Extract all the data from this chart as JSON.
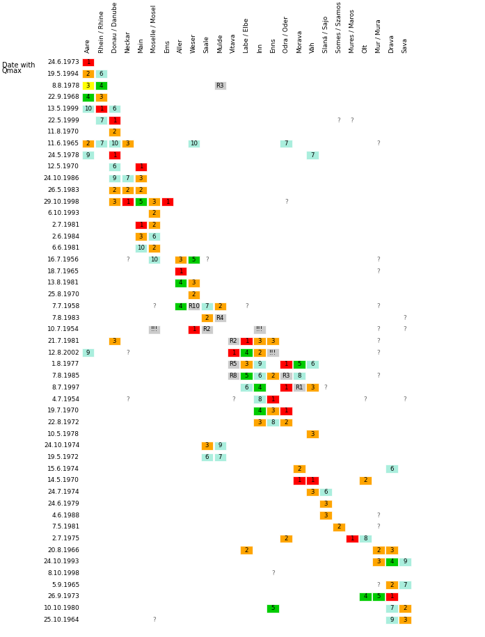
{
  "columns": [
    "Aare",
    "Rhein / Rhine",
    "Donau / Danube",
    "Neckar",
    "Main",
    "Moselle / Mosel",
    "Ems",
    "Aller",
    "Weser",
    "Saale",
    "Mulde",
    "Vitava",
    "Labe / Elbe",
    "Inn",
    "Enns",
    "Odra / Oder",
    "Morava",
    "Váh",
    "Slaná / Sajo",
    "Somes / Szamos",
    "Mures / Maros",
    "Olt",
    "Mur / Mura",
    "Drava",
    "Sava"
  ],
  "rows": [
    {
      "date": "24.6.1973",
      "cells": [
        {
          "col": 0,
          "val": "1",
          "color": "red"
        }
      ]
    },
    {
      "date": "19.5.1994",
      "cells": [
        {
          "col": 0,
          "val": "2",
          "color": "orange"
        },
        {
          "col": 1,
          "val": "6",
          "color": "lightcyan"
        }
      ]
    },
    {
      "date": "8.8.1978",
      "cells": [
        {
          "col": 0,
          "val": "3",
          "color": "yellow"
        },
        {
          "col": 1,
          "val": "4",
          "color": "green"
        },
        {
          "col": 10,
          "val": "R3",
          "color": "lightgray"
        }
      ]
    },
    {
      "date": "22.9.1968",
      "cells": [
        {
          "col": 0,
          "val": "4",
          "color": "green"
        },
        {
          "col": 1,
          "val": "3",
          "color": "orange"
        }
      ]
    },
    {
      "date": "13.5.1999",
      "cells": [
        {
          "col": 0,
          "val": "10",
          "color": "lightcyan"
        },
        {
          "col": 1,
          "val": "1",
          "color": "red"
        },
        {
          "col": 2,
          "val": "6",
          "color": "lightcyan"
        }
      ]
    },
    {
      "date": "22.5.1999",
      "cells": [
        {
          "col": 1,
          "val": "7",
          "color": "lightcyan"
        },
        {
          "col": 2,
          "val": "1",
          "color": "red"
        },
        {
          "col": 19,
          "val": "?",
          "color": "none"
        },
        {
          "col": 20,
          "val": "?",
          "color": "none"
        }
      ]
    },
    {
      "date": "11.8.1970",
      "cells": [
        {
          "col": 2,
          "val": "2",
          "color": "orange"
        }
      ]
    },
    {
      "date": "11.6.1965",
      "cells": [
        {
          "col": 0,
          "val": "2",
          "color": "orange"
        },
        {
          "col": 1,
          "val": "7",
          "color": "lightcyan"
        },
        {
          "col": 2,
          "val": "10",
          "color": "lightcyan"
        },
        {
          "col": 3,
          "val": "3",
          "color": "orange"
        },
        {
          "col": 8,
          "val": "10",
          "color": "lightcyan"
        },
        {
          "col": 15,
          "val": "7",
          "color": "lightcyan"
        },
        {
          "col": 22,
          "val": "?",
          "color": "none"
        }
      ]
    },
    {
      "date": "24.5.1978",
      "cells": [
        {
          "col": 0,
          "val": "9",
          "color": "lightcyan"
        },
        {
          "col": 2,
          "val": "1",
          "color": "red"
        },
        {
          "col": 17,
          "val": "7",
          "color": "lightcyan"
        }
      ]
    },
    {
      "date": "12.5.1970",
      "cells": [
        {
          "col": 2,
          "val": "6",
          "color": "lightcyan"
        },
        {
          "col": 4,
          "val": "1",
          "color": "red"
        }
      ]
    },
    {
      "date": "24.10.1986",
      "cells": [
        {
          "col": 2,
          "val": "9",
          "color": "lightcyan"
        },
        {
          "col": 3,
          "val": "7",
          "color": "lightcyan"
        },
        {
          "col": 4,
          "val": "3",
          "color": "orange"
        }
      ]
    },
    {
      "date": "26.5.1983",
      "cells": [
        {
          "col": 2,
          "val": "2",
          "color": "orange"
        },
        {
          "col": 3,
          "val": "2",
          "color": "orange"
        },
        {
          "col": 4,
          "val": "2",
          "color": "orange"
        }
      ]
    },
    {
      "date": "29.10.1998",
      "cells": [
        {
          "col": 2,
          "val": "3",
          "color": "orange"
        },
        {
          "col": 3,
          "val": "1",
          "color": "red"
        },
        {
          "col": 4,
          "val": "5",
          "color": "green"
        },
        {
          "col": 5,
          "val": "3",
          "color": "orange"
        },
        {
          "col": 6,
          "val": "1",
          "color": "red"
        },
        {
          "col": 15,
          "val": "?",
          "color": "none"
        }
      ]
    },
    {
      "date": "6.10.1993",
      "cells": [
        {
          "col": 5,
          "val": "2",
          "color": "orange"
        }
      ]
    },
    {
      "date": "2.7.1981",
      "cells": [
        {
          "col": 4,
          "val": "1",
          "color": "red"
        },
        {
          "col": 5,
          "val": "2",
          "color": "orange"
        }
      ]
    },
    {
      "date": "2.6.1984",
      "cells": [
        {
          "col": 4,
          "val": "3",
          "color": "orange"
        },
        {
          "col": 5,
          "val": "6",
          "color": "lightcyan"
        }
      ]
    },
    {
      "date": "6.6.1981",
      "cells": [
        {
          "col": 4,
          "val": "10",
          "color": "lightcyan"
        },
        {
          "col": 5,
          "val": "2",
          "color": "orange"
        }
      ]
    },
    {
      "date": "16.7.1956",
      "cells": [
        {
          "col": 3,
          "val": "?",
          "color": "none"
        },
        {
          "col": 5,
          "val": "10",
          "color": "lightcyan"
        },
        {
          "col": 7,
          "val": "3",
          "color": "orange"
        },
        {
          "col": 8,
          "val": "5",
          "color": "green"
        },
        {
          "col": 9,
          "val": "?",
          "color": "none"
        },
        {
          "col": 22,
          "val": "?",
          "color": "none"
        }
      ]
    },
    {
      "date": "18.7.1965",
      "cells": [
        {
          "col": 7,
          "val": "1",
          "color": "red"
        },
        {
          "col": 22,
          "val": "?",
          "color": "none"
        }
      ]
    },
    {
      "date": "13.8.1981",
      "cells": [
        {
          "col": 7,
          "val": "4",
          "color": "green"
        },
        {
          "col": 8,
          "val": "3",
          "color": "orange"
        }
      ]
    },
    {
      "date": "25.8.1970",
      "cells": [
        {
          "col": 8,
          "val": "2",
          "color": "orange"
        }
      ]
    },
    {
      "date": "7.7.1958",
      "cells": [
        {
          "col": 5,
          "val": "?",
          "color": "none"
        },
        {
          "col": 7,
          "val": "4",
          "color": "green"
        },
        {
          "col": 8,
          "val": "R10",
          "color": "lightgray"
        },
        {
          "col": 9,
          "val": "7",
          "color": "lightcyan"
        },
        {
          "col": 10,
          "val": "2",
          "color": "orange"
        },
        {
          "col": 12,
          "val": "?",
          "color": "none"
        },
        {
          "col": 22,
          "val": "?",
          "color": "none"
        }
      ]
    },
    {
      "date": "7.8.1983",
      "cells": [
        {
          "col": 9,
          "val": "2",
          "color": "orange"
        },
        {
          "col": 10,
          "val": "R4",
          "color": "lightgray"
        },
        {
          "col": 24,
          "val": "?",
          "color": "none"
        }
      ]
    },
    {
      "date": "10.7.1954",
      "cells": [
        {
          "col": 5,
          "val": "!!!",
          "color": "lightgray"
        },
        {
          "col": 8,
          "val": "1",
          "color": "red"
        },
        {
          "col": 9,
          "val": "R2",
          "color": "lightgray"
        },
        {
          "col": 13,
          "val": "!!!",
          "color": "lightgray"
        },
        {
          "col": 22,
          "val": "?",
          "color": "none"
        },
        {
          "col": 24,
          "val": "?",
          "color": "none"
        }
      ]
    },
    {
      "date": "21.7.1981",
      "cells": [
        {
          "col": 2,
          "val": "3",
          "color": "orange"
        },
        {
          "col": 11,
          "val": "R2",
          "color": "lightgray"
        },
        {
          "col": 12,
          "val": "1",
          "color": "red"
        },
        {
          "col": 13,
          "val": "3",
          "color": "orange"
        },
        {
          "col": 14,
          "val": "3",
          "color": "orange"
        },
        {
          "col": 22,
          "val": "?",
          "color": "none"
        }
      ]
    },
    {
      "date": "12.8.2002",
      "cells": [
        {
          "col": 0,
          "val": "9",
          "color": "lightcyan"
        },
        {
          "col": 3,
          "val": "?",
          "color": "none"
        },
        {
          "col": 11,
          "val": "1",
          "color": "red"
        },
        {
          "col": 12,
          "val": "4",
          "color": "green"
        },
        {
          "col": 13,
          "val": "2",
          "color": "orange"
        },
        {
          "col": 14,
          "val": "!!!",
          "color": "lightgray"
        },
        {
          "col": 22,
          "val": "?",
          "color": "none"
        }
      ]
    },
    {
      "date": "1.8.1977",
      "cells": [
        {
          "col": 11,
          "val": "R5",
          "color": "lightgray"
        },
        {
          "col": 12,
          "val": "3",
          "color": "orange"
        },
        {
          "col": 13,
          "val": "9",
          "color": "lightcyan"
        },
        {
          "col": 15,
          "val": "1",
          "color": "red"
        },
        {
          "col": 16,
          "val": "5",
          "color": "green"
        },
        {
          "col": 17,
          "val": "6",
          "color": "lightcyan"
        }
      ]
    },
    {
      "date": "7.8.1985",
      "cells": [
        {
          "col": 11,
          "val": "R8",
          "color": "lightgray"
        },
        {
          "col": 12,
          "val": "5",
          "color": "green"
        },
        {
          "col": 13,
          "val": "6",
          "color": "lightcyan"
        },
        {
          "col": 14,
          "val": "2",
          "color": "orange"
        },
        {
          "col": 15,
          "val": "R3",
          "color": "lightgray"
        },
        {
          "col": 16,
          "val": "8",
          "color": "lightcyan"
        },
        {
          "col": 22,
          "val": "?",
          "color": "none"
        }
      ]
    },
    {
      "date": "8.7.1997",
      "cells": [
        {
          "col": 12,
          "val": "6",
          "color": "lightcyan"
        },
        {
          "col": 13,
          "val": "4",
          "color": "green"
        },
        {
          "col": 15,
          "val": "1",
          "color": "red"
        },
        {
          "col": 16,
          "val": "R1",
          "color": "lightgray"
        },
        {
          "col": 17,
          "val": "3",
          "color": "orange"
        },
        {
          "col": 18,
          "val": "?",
          "color": "none"
        }
      ]
    },
    {
      "date": "4.7.1954",
      "cells": [
        {
          "col": 3,
          "val": "?",
          "color": "none"
        },
        {
          "col": 11,
          "val": "?",
          "color": "none"
        },
        {
          "col": 13,
          "val": "8",
          "color": "lightcyan"
        },
        {
          "col": 14,
          "val": "1",
          "color": "red"
        },
        {
          "col": 21,
          "val": "?",
          "color": "none"
        },
        {
          "col": 24,
          "val": "?",
          "color": "none"
        }
      ]
    },
    {
      "date": "19.7.1970",
      "cells": [
        {
          "col": 13,
          "val": "4",
          "color": "green"
        },
        {
          "col": 14,
          "val": "3",
          "color": "orange"
        },
        {
          "col": 15,
          "val": "1",
          "color": "red"
        }
      ]
    },
    {
      "date": "22.8.1972",
      "cells": [
        {
          "col": 13,
          "val": "3",
          "color": "orange"
        },
        {
          "col": 14,
          "val": "8",
          "color": "lightcyan"
        },
        {
          "col": 15,
          "val": "2",
          "color": "orange"
        }
      ]
    },
    {
      "date": "10.5.1978",
      "cells": [
        {
          "col": 17,
          "val": "3",
          "color": "orange"
        }
      ]
    },
    {
      "date": "24.10.1974",
      "cells": [
        {
          "col": 9,
          "val": "3",
          "color": "orange"
        },
        {
          "col": 10,
          "val": "9",
          "color": "lightcyan"
        }
      ]
    },
    {
      "date": "19.5.1972",
      "cells": [
        {
          "col": 9,
          "val": "6",
          "color": "lightcyan"
        },
        {
          "col": 10,
          "val": "7",
          "color": "lightcyan"
        }
      ]
    },
    {
      "date": "15.6.1974",
      "cells": [
        {
          "col": 16,
          "val": "2",
          "color": "orange"
        },
        {
          "col": 23,
          "val": "6",
          "color": "lightcyan"
        }
      ]
    },
    {
      "date": "14.5.1970",
      "cells": [
        {
          "col": 16,
          "val": "1",
          "color": "red"
        },
        {
          "col": 17,
          "val": "1",
          "color": "red"
        },
        {
          "col": 21,
          "val": "2",
          "color": "orange"
        }
      ]
    },
    {
      "date": "24.7.1974",
      "cells": [
        {
          "col": 17,
          "val": "3",
          "color": "orange"
        },
        {
          "col": 18,
          "val": "6",
          "color": "lightcyan"
        }
      ]
    },
    {
      "date": "24.6.1979",
      "cells": [
        {
          "col": 18,
          "val": "3",
          "color": "orange"
        }
      ]
    },
    {
      "date": "4.6.1988",
      "cells": [
        {
          "col": 18,
          "val": "3",
          "color": "orange"
        },
        {
          "col": 22,
          "val": "?",
          "color": "none"
        }
      ]
    },
    {
      "date": "7.5.1981",
      "cells": [
        {
          "col": 19,
          "val": "2",
          "color": "orange"
        },
        {
          "col": 22,
          "val": "?",
          "color": "none"
        }
      ]
    },
    {
      "date": "2.7.1975",
      "cells": [
        {
          "col": 15,
          "val": "2",
          "color": "orange"
        },
        {
          "col": 20,
          "val": "1",
          "color": "red"
        },
        {
          "col": 21,
          "val": "8",
          "color": "lightcyan"
        }
      ]
    },
    {
      "date": "20.8.1966",
      "cells": [
        {
          "col": 12,
          "val": "2",
          "color": "orange"
        },
        {
          "col": 22,
          "val": "2",
          "color": "orange"
        },
        {
          "col": 23,
          "val": "3",
          "color": "orange"
        }
      ]
    },
    {
      "date": "24.10.1993",
      "cells": [
        {
          "col": 22,
          "val": "3",
          "color": "orange"
        },
        {
          "col": 23,
          "val": "4",
          "color": "green"
        },
        {
          "col": 24,
          "val": "9",
          "color": "lightcyan"
        }
      ]
    },
    {
      "date": "8.10.1998",
      "cells": [
        {
          "col": 14,
          "val": "?",
          "color": "none"
        }
      ]
    },
    {
      "date": "5.9.1965",
      "cells": [
        {
          "col": 22,
          "val": "?",
          "color": "none"
        },
        {
          "col": 23,
          "val": "2",
          "color": "orange"
        },
        {
          "col": 24,
          "val": "7",
          "color": "lightcyan"
        }
      ]
    },
    {
      "date": "26.9.1973",
      "cells": [
        {
          "col": 21,
          "val": "4",
          "color": "green"
        },
        {
          "col": 22,
          "val": "5",
          "color": "green"
        },
        {
          "col": 23,
          "val": "1",
          "color": "red"
        }
      ]
    },
    {
      "date": "10.10.1980",
      "cells": [
        {
          "col": 14,
          "val": "5",
          "color": "green"
        },
        {
          "col": 23,
          "val": "7",
          "color": "lightcyan"
        },
        {
          "col": 24,
          "val": "2",
          "color": "orange"
        }
      ]
    },
    {
      "date": "25.10.1964",
      "cells": [
        {
          "col": 5,
          "val": "?",
          "color": "none"
        },
        {
          "col": 23,
          "val": "9",
          "color": "lightcyan"
        },
        {
          "col": 24,
          "val": "3",
          "color": "orange"
        }
      ]
    }
  ],
  "color_map": {
    "red": "#FF0000",
    "orange": "#FFA500",
    "yellow": "#FFFF00",
    "green": "#00CC00",
    "lightcyan": "#AAEEDD",
    "lightgray": "#CCCCCC",
    "none": "none"
  }
}
